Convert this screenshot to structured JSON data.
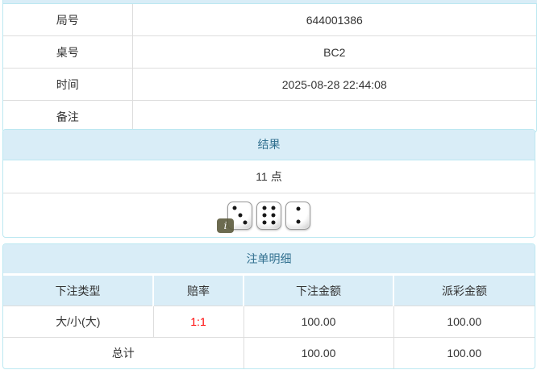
{
  "info_table": {
    "rows": [
      {
        "label": "局号",
        "value": "644001386"
      },
      {
        "label": "桌号",
        "value": "BC2"
      },
      {
        "label": "时间",
        "value": "2025-08-28 22:44:08"
      },
      {
        "label": "备注",
        "value": ""
      }
    ]
  },
  "result_panel": {
    "title": "结果",
    "points": "11 点",
    "dice": [
      3,
      6,
      2
    ],
    "info_badge": "i"
  },
  "bets_panel": {
    "title": "注单明细",
    "columns": [
      "下注类型",
      "赔率",
      "下注金额",
      "派彩金额"
    ],
    "rows": [
      {
        "bet_type": "大/小(大)",
        "odds": "1:1",
        "bet_amount": "100.00",
        "payout_amount": "100.00"
      }
    ],
    "total": {
      "label": "总计",
      "bet_amount": "100.00",
      "payout_amount": "100.00"
    }
  },
  "colors": {
    "panel_border": "#bce8f1",
    "heading_bg": "#d9edf7",
    "heading_text": "#31708f",
    "table_border": "#dddddd",
    "odds_text": "#ff0000",
    "body_text": "#333333"
  }
}
